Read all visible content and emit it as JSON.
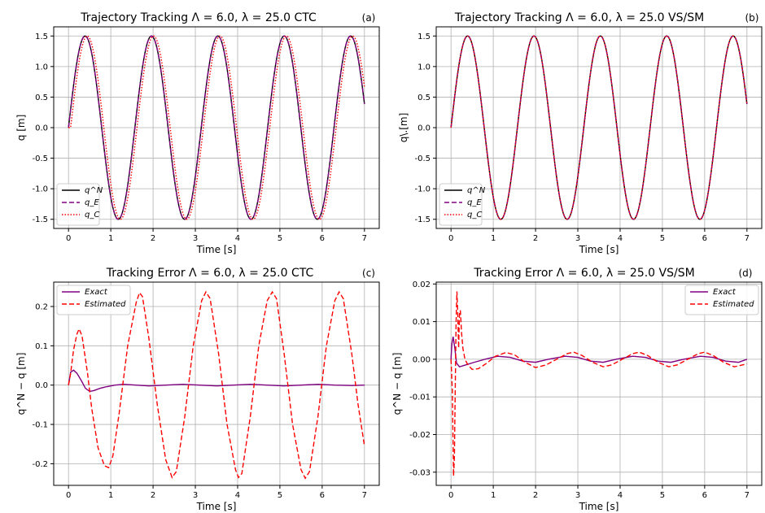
{
  "chart_data": [
    {
      "id": "a",
      "type": "line",
      "title": "Trajectory Tracking Λ = 6.0, λ = 25.0 CTC",
      "tag": "(a)",
      "xlabel": "Time [s]",
      "ylabel": "q [m]",
      "xlim": [
        -0.35,
        7.35
      ],
      "ylim": [
        -1.65,
        1.65
      ],
      "xticks": [
        0,
        1,
        2,
        3,
        4,
        5,
        6,
        7
      ],
      "yticks": [
        -1.5,
        -1.0,
        -0.5,
        0.0,
        0.5,
        1.0,
        1.5
      ],
      "ytick_labels": [
        "-1.5",
        "-1.0",
        "-0.5",
        "0.0",
        "0.5",
        "1.0",
        "1.5"
      ],
      "grid": true,
      "legend_position": "lower-left",
      "series": [
        {
          "name": "q^N",
          "color": "#000000",
          "style": "solid"
        },
        {
          "name": "q_E",
          "color": "#800080",
          "style": "dashed"
        },
        {
          "name": "q_C",
          "color": "#ff0000",
          "style": "dotted"
        }
      ],
      "model": {
        "amplitude": 1.5,
        "period": 1.57,
        "duration": 7.0,
        "q_C_lag": 0.05
      }
    },
    {
      "id": "b",
      "type": "line",
      "title": "Trajectory Tracking Λ = 6.0, λ = 25.0 VS/SM",
      "tag": "(b)",
      "xlabel": "Time [s]",
      "ylabel": "q\\.[m]",
      "xlim": [
        -0.35,
        7.35
      ],
      "ylim": [
        -1.65,
        1.65
      ],
      "xticks": [
        0,
        1,
        2,
        3,
        4,
        5,
        6,
        7
      ],
      "yticks": [
        -1.5,
        -1.0,
        -0.5,
        0.0,
        0.5,
        1.0,
        1.5
      ],
      "ytick_labels": [
        "-1.5",
        "-1.0",
        "-0.5",
        "0.0",
        "0.5",
        "1.0",
        "1.5"
      ],
      "grid": true,
      "legend_position": "lower-left",
      "series": [
        {
          "name": "q^N",
          "color": "#000000",
          "style": "solid"
        },
        {
          "name": "q_E",
          "color": "#800080",
          "style": "dashed"
        },
        {
          "name": "q_C",
          "color": "#ff0000",
          "style": "dotted"
        }
      ],
      "model": {
        "amplitude": 1.5,
        "period": 1.57,
        "duration": 7.0,
        "q_C_lag": 0.0
      }
    },
    {
      "id": "c",
      "type": "line",
      "title": "Tracking Error Λ = 6.0, λ = 25.0 CTC",
      "tag": "(c)",
      "xlabel": "Time [s]",
      "ylabel": "q^N − q [m]",
      "xlim": [
        -0.35,
        7.35
      ],
      "ylim": [
        -0.255,
        0.262
      ],
      "xticks": [
        0,
        1,
        2,
        3,
        4,
        5,
        6,
        7
      ],
      "yticks": [
        -0.2,
        -0.1,
        0.0,
        0.1,
        0.2
      ],
      "ytick_labels": [
        "-0.2",
        "-0.1",
        "0.0",
        "0.1",
        "0.2"
      ],
      "grid": true,
      "legend_position": "upper-left",
      "series": [
        {
          "name": "Exact",
          "color": "#800080",
          "style": "solid",
          "points": [
            [
              0,
              0
            ],
            [
              0.05,
              0.033
            ],
            [
              0.12,
              0.038
            ],
            [
              0.2,
              0.03
            ],
            [
              0.3,
              0.012
            ],
            [
              0.4,
              -0.008
            ],
            [
              0.5,
              -0.016
            ],
            [
              0.6,
              -0.014
            ],
            [
              0.75,
              -0.008
            ],
            [
              0.9,
              -0.004
            ],
            [
              1.1,
              0.0
            ],
            [
              1.3,
              0.002
            ],
            [
              1.6,
              0.0
            ],
            [
              1.9,
              -0.002
            ],
            [
              2.3,
              0.0
            ],
            [
              2.7,
              0.002
            ],
            [
              3.1,
              0.0
            ],
            [
              3.5,
              -0.002
            ],
            [
              3.9,
              0.0
            ],
            [
              4.3,
              0.002
            ],
            [
              4.7,
              0.0
            ],
            [
              5.1,
              -0.002
            ],
            [
              5.5,
              0.0
            ],
            [
              5.9,
              0.002
            ],
            [
              6.3,
              0.0
            ],
            [
              6.7,
              -0.001
            ],
            [
              7.0,
              0.0
            ]
          ]
        },
        {
          "name": "Estimated",
          "color": "#ff0000",
          "style": "dashed",
          "points": [
            [
              0,
              0
            ],
            [
              0.05,
              0.03
            ],
            [
              0.12,
              0.09
            ],
            [
              0.2,
              0.13
            ],
            [
              0.25,
              0.143
            ],
            [
              0.32,
              0.125
            ],
            [
              0.45,
              0.03
            ],
            [
              0.55,
              -0.06
            ],
            [
              0.7,
              -0.16
            ],
            [
              0.85,
              -0.205
            ],
            [
              0.95,
              -0.21
            ],
            [
              1.05,
              -0.18
            ],
            [
              1.2,
              -0.07
            ],
            [
              1.4,
              0.1
            ],
            [
              1.6,
              0.21
            ],
            [
              1.68,
              0.235
            ],
            [
              1.75,
              0.225
            ],
            [
              1.9,
              0.12
            ],
            [
              2.1,
              -0.05
            ],
            [
              2.3,
              -0.19
            ],
            [
              2.45,
              -0.235
            ],
            [
              2.55,
              -0.22
            ],
            [
              2.75,
              -0.08
            ],
            [
              2.95,
              0.1
            ],
            [
              3.15,
              0.215
            ],
            [
              3.25,
              0.237
            ],
            [
              3.35,
              0.22
            ],
            [
              3.55,
              0.08
            ],
            [
              3.75,
              -0.1
            ],
            [
              3.95,
              -0.215
            ],
            [
              4.02,
              -0.235
            ],
            [
              4.1,
              -0.225
            ],
            [
              4.3,
              -0.08
            ],
            [
              4.5,
              0.1
            ],
            [
              4.7,
              0.215
            ],
            [
              4.82,
              0.237
            ],
            [
              4.92,
              0.22
            ],
            [
              5.1,
              0.08
            ],
            [
              5.3,
              -0.1
            ],
            [
              5.5,
              -0.215
            ],
            [
              5.6,
              -0.237
            ],
            [
              5.7,
              -0.22
            ],
            [
              5.9,
              -0.08
            ],
            [
              6.1,
              0.1
            ],
            [
              6.3,
              0.215
            ],
            [
              6.4,
              0.237
            ],
            [
              6.5,
              0.22
            ],
            [
              6.7,
              0.08
            ],
            [
              6.85,
              -0.05
            ],
            [
              7.0,
              -0.155
            ]
          ]
        }
      ]
    },
    {
      "id": "d",
      "type": "line",
      "title": "Tracking Error Λ = 6.0, λ = 25.0 VS/SM",
      "tag": "(d)",
      "xlabel": "Time [s]",
      "ylabel": "q^N − q [m]",
      "xlim": [
        -0.35,
        7.35
      ],
      "ylim": [
        -0.0335,
        0.0205
      ],
      "xticks": [
        0,
        1,
        2,
        3,
        4,
        5,
        6,
        7
      ],
      "yticks": [
        -0.03,
        -0.02,
        -0.01,
        0.0,
        0.01,
        0.02
      ],
      "ytick_labels": [
        "-0.03",
        "-0.02",
        "-0.01",
        "0.00",
        "0.01",
        "0.02"
      ],
      "grid": true,
      "legend_position": "upper-right",
      "series": [
        {
          "name": "Exact",
          "color": "#800080",
          "style": "solid",
          "points": [
            [
              0,
              0
            ],
            [
              0.02,
              0.004
            ],
            [
              0.05,
              0.006
            ],
            [
              0.09,
              0.003
            ],
            [
              0.13,
              -0.001
            ],
            [
              0.2,
              -0.002
            ],
            [
              0.35,
              -0.0015
            ],
            [
              0.55,
              -0.0008
            ],
            [
              0.8,
              0.0
            ],
            [
              1.1,
              0.0008
            ],
            [
              1.4,
              0.0005
            ],
            [
              1.7,
              -0.0005
            ],
            [
              2.0,
              -0.0008
            ],
            [
              2.3,
              0.0
            ],
            [
              2.7,
              0.0008
            ],
            [
              3.0,
              0.0005
            ],
            [
              3.3,
              -0.0005
            ],
            [
              3.6,
              -0.0008
            ],
            [
              3.9,
              0.0
            ],
            [
              4.3,
              0.0008
            ],
            [
              4.6,
              0.0005
            ],
            [
              4.9,
              -0.0005
            ],
            [
              5.2,
              -0.0008
            ],
            [
              5.5,
              0.0
            ],
            [
              5.9,
              0.0008
            ],
            [
              6.2,
              0.0005
            ],
            [
              6.5,
              -0.0005
            ],
            [
              6.8,
              -0.0008
            ],
            [
              7.0,
              0.0
            ]
          ]
        },
        {
          "name": "Estimated",
          "color": "#ff0000",
          "style": "dashed",
          "points": [
            [
              0,
              0
            ],
            [
              0.03,
              -0.008
            ],
            [
              0.06,
              -0.031
            ],
            [
              0.08,
              -0.026
            ],
            [
              0.1,
              -0.008
            ],
            [
              0.12,
              0.01
            ],
            [
              0.14,
              0.018
            ],
            [
              0.16,
              0.012
            ],
            [
              0.18,
              0.003
            ],
            [
              0.2,
              0.012
            ],
            [
              0.22,
              0.013
            ],
            [
              0.25,
              0.007
            ],
            [
              0.28,
              0.003
            ],
            [
              0.33,
              0.0
            ],
            [
              0.4,
              -0.0015
            ],
            [
              0.5,
              -0.0027
            ],
            [
              0.65,
              -0.0025
            ],
            [
              0.85,
              -0.001
            ],
            [
              1.05,
              0.0008
            ],
            [
              1.3,
              0.0018
            ],
            [
              1.5,
              0.0012
            ],
            [
              1.75,
              -0.0008
            ],
            [
              2.0,
              -0.0022
            ],
            [
              2.25,
              -0.0015
            ],
            [
              2.5,
              0.0
            ],
            [
              2.75,
              0.0015
            ],
            [
              2.9,
              0.0019
            ],
            [
              3.1,
              0.001
            ],
            [
              3.35,
              -0.0008
            ],
            [
              3.6,
              -0.002
            ],
            [
              3.8,
              -0.0015
            ],
            [
              4.05,
              0.0
            ],
            [
              4.3,
              0.0015
            ],
            [
              4.45,
              0.0019
            ],
            [
              4.65,
              0.001
            ],
            [
              4.9,
              -0.0008
            ],
            [
              5.15,
              -0.002
            ],
            [
              5.35,
              -0.0015
            ],
            [
              5.6,
              0.0
            ],
            [
              5.85,
              0.0015
            ],
            [
              6.0,
              0.0019
            ],
            [
              6.2,
              0.001
            ],
            [
              6.45,
              -0.0008
            ],
            [
              6.7,
              -0.002
            ],
            [
              6.9,
              -0.0015
            ],
            [
              7.0,
              -0.0012
            ]
          ]
        }
      ]
    }
  ]
}
